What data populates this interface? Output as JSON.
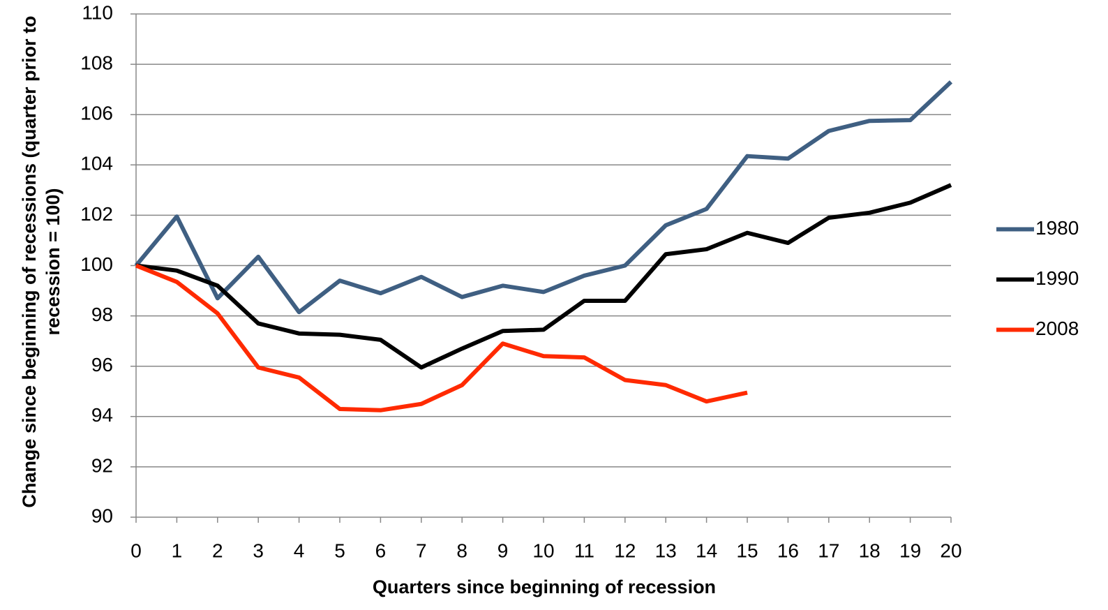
{
  "chart_data": {
    "type": "line",
    "x_label": "Quarters since beginning of recession",
    "y_label": "Change since beginning of recessions (quarter prior to recession = 100)",
    "x": [
      0,
      1,
      2,
      3,
      4,
      5,
      6,
      7,
      8,
      9,
      10,
      11,
      12,
      13,
      14,
      15,
      16,
      17,
      18,
      19,
      20
    ],
    "xlim": [
      0,
      20
    ],
    "xticks": [
      0,
      1,
      2,
      3,
      4,
      5,
      6,
      7,
      8,
      9,
      10,
      11,
      12,
      13,
      14,
      15,
      16,
      17,
      18,
      19,
      20
    ],
    "ylim": [
      90,
      110
    ],
    "yticks": [
      90,
      92,
      94,
      96,
      98,
      100,
      102,
      104,
      106,
      108,
      110
    ],
    "grid": true,
    "legend": "right",
    "series": [
      {
        "name": "1980",
        "color": "#3f5f82",
        "values": [
          100,
          101.95,
          98.7,
          100.35,
          98.15,
          99.4,
          98.9,
          99.55,
          98.75,
          99.2,
          98.95,
          99.6,
          100,
          101.6,
          102.25,
          104.35,
          104.25,
          105.35,
          105.75,
          105.78,
          107.3
        ]
      },
      {
        "name": "1990",
        "color": "#000000",
        "values": [
          100,
          99.8,
          99.2,
          97.7,
          97.3,
          97.25,
          97.05,
          95.95,
          96.7,
          97.4,
          97.45,
          98.6,
          98.6,
          100.45,
          100.65,
          101.3,
          100.9,
          101.9,
          102.1,
          102.5,
          103.2
        ]
      },
      {
        "name": "2008",
        "color": "#ff2a00",
        "values": [
          100,
          99.35,
          98.1,
          95.95,
          95.55,
          94.3,
          94.25,
          94.5,
          95.25,
          96.9,
          96.4,
          96.35,
          95.45,
          95.25,
          94.6,
          94.95,
          null,
          null,
          null,
          null,
          null
        ]
      }
    ]
  }
}
